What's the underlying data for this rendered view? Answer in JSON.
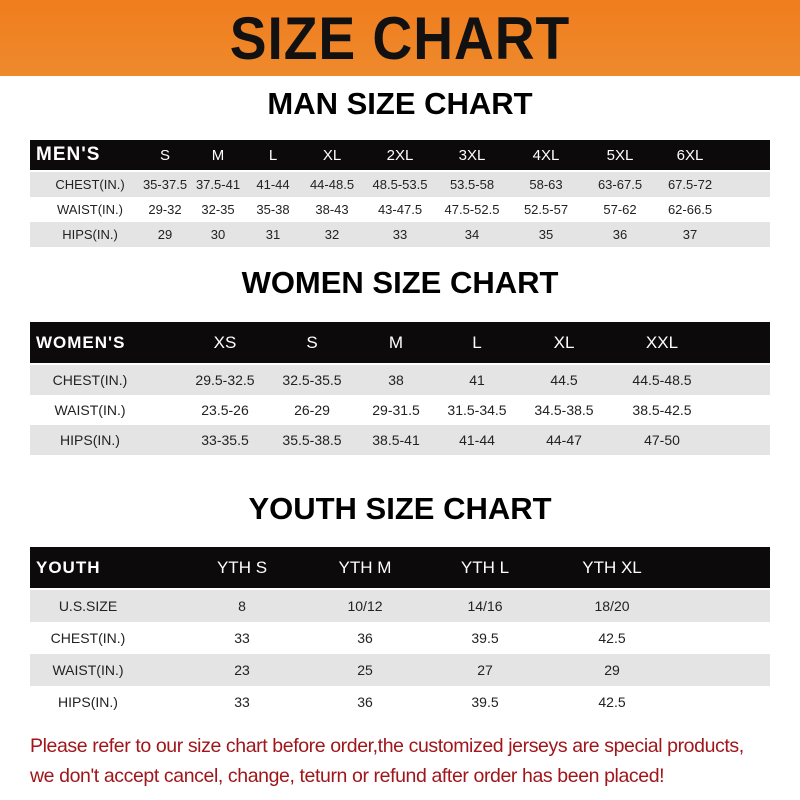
{
  "banner": {
    "title": "SIZE CHART",
    "color": "#f07d1e"
  },
  "men": {
    "title": "MAN SIZE CHART",
    "header": [
      "MEN'S",
      "S",
      "M",
      "L",
      "XL",
      "2XL",
      "3XL",
      "4XL",
      "5XL",
      "6XL"
    ],
    "rows": [
      [
        "CHEST(IN.)",
        "35-37.5",
        "37.5-41",
        "41-44",
        "44-48.5",
        "48.5-53.5",
        "53.5-58",
        "58-63",
        "63-67.5",
        "67.5-72"
      ],
      [
        "WAIST(IN.)",
        "29-32",
        "32-35",
        "35-38",
        "38-43",
        "43-47.5",
        "47.5-52.5",
        "52.5-57",
        "57-62",
        "62-66.5"
      ],
      [
        "HIPS(IN.)",
        "29",
        "30",
        "31",
        "32",
        "33",
        "34",
        "35",
        "36",
        "37"
      ]
    ]
  },
  "women": {
    "title": "WOMEN SIZE CHART",
    "header": [
      "WOMEN'S",
      "XS",
      "S",
      "M",
      "L",
      "XL",
      "XXL"
    ],
    "rows": [
      [
        "CHEST(IN.)",
        "29.5-32.5",
        "32.5-35.5",
        "38",
        "41",
        "44.5",
        "44.5-48.5"
      ],
      [
        "WAIST(IN.)",
        "23.5-26",
        "26-29",
        "29-31.5",
        "31.5-34.5",
        "34.5-38.5",
        "38.5-42.5"
      ],
      [
        "HIPS(IN.)",
        "33-35.5",
        "35.5-38.5",
        "38.5-41",
        "41-44",
        "44-47",
        "47-50"
      ]
    ]
  },
  "youth": {
    "title": "YOUTH SIZE CHART",
    "header": [
      "YOUTH",
      "YTH S",
      "YTH M",
      "YTH L",
      "YTH XL"
    ],
    "rows": [
      [
        "U.S.SIZE",
        "8",
        "10/12",
        "14/16",
        "18/20"
      ],
      [
        "CHEST(IN.)",
        "33",
        "36",
        "39.5",
        "42.5"
      ],
      [
        "WAIST(IN.)",
        "23",
        "25",
        "27",
        "29"
      ],
      [
        "HIPS(IN.)",
        "33",
        "36",
        "39.5",
        "42.5"
      ]
    ]
  },
  "footer": {
    "line1": "Please refer to our size chart before order,the customized jerseys are special products,",
    "line2": "we don't accept cancel, change, teturn or refund after order has been placed!",
    "color": "#a0161a"
  }
}
